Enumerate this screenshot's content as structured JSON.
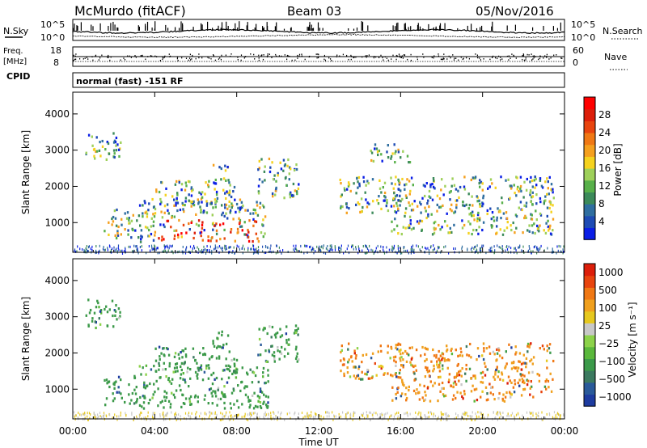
{
  "header": {
    "station": "McMurdo (fitACF)",
    "beam": "Beam 03",
    "date": "05/Nov/2016"
  },
  "status_panels": {
    "noise": {
      "left_label": "N.Sky",
      "right_label": "N.Search",
      "left_ticks": [
        "10^5",
        "10^0"
      ],
      "right_ticks": [
        "10^5",
        "10^0"
      ]
    },
    "freq": {
      "left_label_top": "Freq.",
      "left_label_unit": "[MHz]",
      "left_ticks": [
        "18",
        "8"
      ],
      "right_label": "Nave",
      "right_ticks": [
        "60",
        "0"
      ]
    },
    "cpid": {
      "label": "CPID",
      "text": "normal (fast) -151 RF"
    }
  },
  "chart_data": [
    {
      "type": "heatmap",
      "panel": "power",
      "ylabel": "Slant Range [km]",
      "yticks": [
        1000,
        2000,
        3000,
        4000
      ],
      "ylim": [
        180,
        4600
      ],
      "xlim": [
        0,
        24
      ],
      "colorbar": {
        "label": "Power [dB]",
        "ticks": [
          "4",
          "8",
          "12",
          "16",
          "20",
          "24",
          "28"
        ],
        "colors": [
          "#0a1ee6",
          "#1e4bb4",
          "#2f6ea0",
          "#3c8a5a",
          "#58b04a",
          "#9ed05a",
          "#f5d21e",
          "#f5a01e",
          "#f07814",
          "#e8440e",
          "#dc1e0a",
          "#ff0000"
        ]
      },
      "regions": [
        {
          "t0": 0.6,
          "t1": 2.3,
          "r0": 2700,
          "r1": 3500
        },
        {
          "t0": 1.5,
          "t1": 3.2,
          "r0": 600,
          "r1": 1400
        },
        {
          "t0": 3.2,
          "t1": 9.5,
          "r0": 500,
          "r1": 1700
        },
        {
          "t0": 4.0,
          "t1": 8.0,
          "r0": 1500,
          "r1": 2200
        },
        {
          "t0": 6.8,
          "t1": 7.6,
          "r0": 2100,
          "r1": 2700
        },
        {
          "t0": 9.0,
          "t1": 11.0,
          "r0": 1700,
          "r1": 2800
        },
        {
          "t0": 13.0,
          "t1": 16.0,
          "r0": 1300,
          "r1": 2300
        },
        {
          "t0": 15.5,
          "t1": 23.5,
          "r0": 700,
          "r1": 2300
        },
        {
          "t0": 14.5,
          "t1": 16.5,
          "r0": 2700,
          "r1": 3200
        }
      ],
      "strong_core": {
        "t0": 4.0,
        "t1": 9.0,
        "r0": 500,
        "r1": 1100
      }
    },
    {
      "type": "heatmap",
      "panel": "velocity",
      "ylabel": "Slant Range [km]",
      "yticks": [
        1000,
        2000,
        3000,
        4000
      ],
      "ylim": [
        180,
        4600
      ],
      "xlim": [
        0,
        24
      ],
      "colorbar": {
        "label": "Velocity [m s⁻¹]",
        "ticks": [
          "1000",
          "500",
          "100",
          "25",
          "−25",
          "−100",
          "−500",
          "−1000"
        ],
        "colors": [
          "#1e3ca0",
          "#2a5a9a",
          "#3c7a60",
          "#3c9a4a",
          "#5ab83c",
          "#8cd24a",
          "#c8c8c8",
          "#e6c81e",
          "#f0a01e",
          "#f07814",
          "#e8440e",
          "#dc1e0a"
        ]
      },
      "regions": [
        {
          "t0": 0.6,
          "t1": 2.3,
          "r0": 2700,
          "r1": 3500
        },
        {
          "t0": 1.5,
          "t1": 3.2,
          "r0": 600,
          "r1": 1400
        },
        {
          "t0": 3.2,
          "t1": 9.5,
          "r0": 500,
          "r1": 1700
        },
        {
          "t0": 4.0,
          "t1": 8.0,
          "r0": 1500,
          "r1": 2200
        },
        {
          "t0": 6.8,
          "t1": 7.6,
          "r0": 2100,
          "r1": 2700
        },
        {
          "t0": 9.0,
          "t1": 11.0,
          "r0": 1700,
          "r1": 2800
        },
        {
          "t0": 13.0,
          "t1": 16.0,
          "r0": 1300,
          "r1": 2300
        },
        {
          "t0": 15.5,
          "t1": 23.5,
          "r0": 700,
          "r1": 2300
        }
      ]
    }
  ],
  "xaxis": {
    "ticks": [
      "00:00",
      "04:00",
      "08:00",
      "12:00",
      "16:00",
      "20:00",
      "00:00"
    ],
    "tick_hours": [
      0,
      4,
      8,
      12,
      16,
      20,
      24
    ],
    "label": "Time UT"
  }
}
